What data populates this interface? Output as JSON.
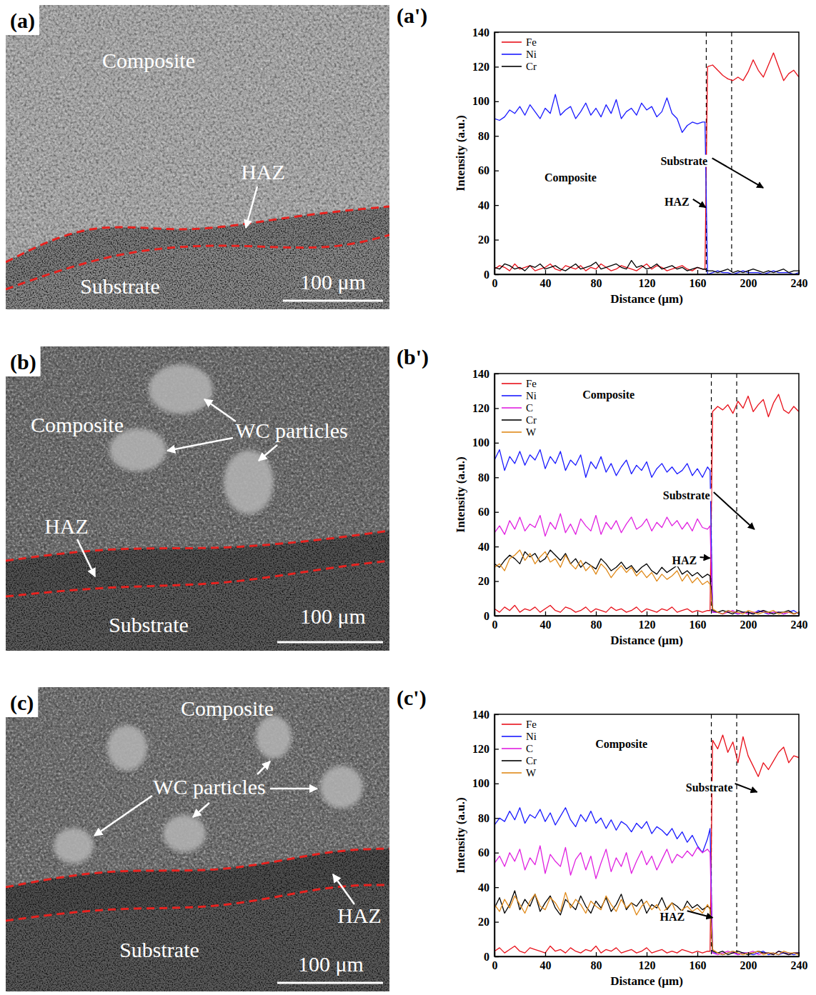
{
  "images": [
    {
      "label": "(a)",
      "texts": [
        "Composite",
        "HAZ",
        "Substrate"
      ],
      "scale_bar": "100 μm"
    },
    {
      "label": "(b)",
      "texts": [
        "Composite",
        "WC particles",
        "HAZ",
        "Substrate"
      ],
      "scale_bar": "100 μm"
    },
    {
      "label": "(c)",
      "texts": [
        "Composite",
        "WC particles",
        "HAZ",
        "Substrate"
      ],
      "scale_bar": "100 μm"
    }
  ],
  "chart_data": [
    {
      "type": "line",
      "title": "(a')",
      "x_label": "Distance (μm)",
      "y_label": "Intensity (a.u.)",
      "x": [
        0,
        4,
        8,
        12,
        16,
        20,
        24,
        28,
        32,
        36,
        40,
        44,
        48,
        52,
        56,
        60,
        64,
        68,
        72,
        76,
        80,
        84,
        88,
        92,
        96,
        100,
        104,
        108,
        112,
        116,
        120,
        124,
        128,
        132,
        136,
        140,
        144,
        148,
        152,
        156,
        160,
        164,
        166,
        168,
        172,
        176,
        180,
        184,
        188,
        192,
        196,
        200,
        204,
        208,
        212,
        216,
        220,
        224,
        228,
        232,
        236,
        240
      ],
      "series": [
        {
          "name": "Fe",
          "color": "#e8101a",
          "values": [
            3,
            5,
            4,
            2,
            6,
            3,
            4,
            5,
            2,
            3,
            4,
            6,
            3,
            2,
            5,
            4,
            3,
            5,
            2,
            4,
            3,
            6,
            4,
            2,
            3,
            5,
            4,
            3,
            2,
            4,
            6,
            3,
            5,
            4,
            2,
            3,
            4,
            5,
            3,
            2,
            4,
            3,
            3,
            120,
            121,
            118,
            115,
            113,
            112,
            114,
            112,
            117,
            124,
            118,
            114,
            121,
            128,
            120,
            112,
            116,
            118,
            114
          ]
        },
        {
          "name": "Ni",
          "color": "#1a1aff",
          "values": [
            90,
            89,
            91,
            95,
            93,
            97,
            92,
            98,
            94,
            90,
            96,
            93,
            104,
            92,
            95,
            97,
            90,
            94,
            99,
            92,
            96,
            91,
            98,
            93,
            101,
            90,
            94,
            96,
            92,
            99,
            95,
            97,
            91,
            94,
            102,
            93,
            90,
            82,
            86,
            88,
            87,
            88,
            88,
            0,
            1,
            2,
            1,
            1,
            0,
            1,
            2,
            1,
            1,
            1,
            0,
            1,
            2,
            1,
            1,
            1,
            0,
            1
          ]
        },
        {
          "name": "Cr",
          "color": "#000000",
          "values": [
            4,
            3,
            6,
            5,
            3,
            4,
            2,
            5,
            4,
            6,
            3,
            4,
            5,
            3,
            2,
            4,
            6,
            3,
            4,
            5,
            7,
            3,
            4,
            5,
            6,
            4,
            3,
            8,
            4,
            5,
            3,
            4,
            6,
            3,
            4,
            5,
            3,
            4,
            2,
            3,
            4,
            3,
            3,
            2,
            2,
            1,
            2,
            3,
            1,
            2,
            1,
            2,
            3,
            2,
            1,
            2,
            1,
            2,
            3,
            1,
            2,
            2
          ]
        }
      ],
      "xlim": [
        0,
        240
      ],
      "ylim": [
        0,
        140
      ],
      "xticks": [
        0,
        40,
        80,
        120,
        160,
        200,
        240
      ],
      "yticks": [
        0,
        20,
        40,
        60,
        80,
        100,
        120,
        140
      ],
      "legend": "upper left",
      "boundaries": [
        167,
        187
      ],
      "annotations": [
        "Composite",
        "Substrate",
        "HAZ"
      ]
    },
    {
      "type": "line",
      "title": "(b')",
      "x_label": "Distance (μm)",
      "y_label": "Intensity (a.u.)",
      "x": [
        0,
        4,
        8,
        12,
        16,
        20,
        24,
        28,
        32,
        36,
        40,
        44,
        48,
        52,
        56,
        60,
        64,
        68,
        72,
        76,
        80,
        84,
        88,
        92,
        96,
        100,
        104,
        108,
        112,
        116,
        120,
        124,
        128,
        132,
        136,
        140,
        144,
        148,
        152,
        156,
        160,
        164,
        168,
        170,
        172,
        176,
        180,
        184,
        188,
        192,
        196,
        200,
        204,
        208,
        212,
        216,
        220,
        224,
        228,
        232,
        236,
        240
      ],
      "series": [
        {
          "name": "Fe",
          "color": "#e8101a",
          "values": [
            4,
            2,
            5,
            3,
            6,
            2,
            4,
            3,
            5,
            2,
            4,
            6,
            3,
            2,
            5,
            4,
            2,
            3,
            5,
            2,
            4,
            3,
            2,
            5,
            3,
            4,
            2,
            3,
            5,
            2,
            4,
            3,
            2,
            4,
            3,
            5,
            2,
            3,
            4,
            2,
            3,
            2,
            3,
            3,
            118,
            121,
            119,
            122,
            117,
            124,
            120,
            127,
            118,
            122,
            125,
            115,
            123,
            128,
            119,
            117,
            121,
            118
          ]
        },
        {
          "name": "Ni",
          "color": "#1a1aff",
          "values": [
            90,
            96,
            84,
            92,
            88,
            95,
            87,
            93,
            90,
            96,
            85,
            92,
            88,
            95,
            84,
            90,
            87,
            93,
            80,
            89,
            85,
            92,
            83,
            88,
            81,
            86,
            90,
            82,
            87,
            84,
            89,
            80,
            85,
            88,
            83,
            86,
            82,
            84,
            88,
            81,
            85,
            80,
            86,
            84,
            2,
            2,
            1,
            3,
            2,
            1,
            2,
            2,
            1,
            3,
            2,
            1,
            2,
            2,
            1,
            2,
            3,
            1
          ]
        },
        {
          "name": "C",
          "color": "#e020e0",
          "values": [
            48,
            52,
            47,
            55,
            50,
            57,
            49,
            53,
            51,
            58,
            46,
            54,
            50,
            59,
            48,
            53,
            47,
            56,
            52,
            49,
            58,
            47,
            54,
            50,
            55,
            48,
            53,
            57,
            50,
            52,
            56,
            49,
            54,
            51,
            57,
            52,
            55,
            50,
            54,
            49,
            56,
            51,
            50,
            52,
            2,
            2,
            1,
            2,
            3,
            1,
            2,
            1,
            2,
            2,
            3,
            1,
            2,
            2,
            1,
            2,
            1,
            2
          ]
        },
        {
          "name": "Cr",
          "color": "#000000",
          "values": [
            30,
            28,
            32,
            35,
            33,
            30,
            37,
            34,
            36,
            31,
            33,
            38,
            35,
            32,
            36,
            30,
            33,
            28,
            31,
            29,
            27,
            33,
            30,
            26,
            28,
            31,
            27,
            29,
            25,
            28,
            30,
            26,
            24,
            28,
            25,
            27,
            29,
            24,
            26,
            23,
            25,
            22,
            24,
            23,
            3,
            2,
            3,
            2,
            1,
            3,
            2,
            2,
            1,
            2,
            3,
            2,
            1,
            2,
            2,
            3,
            1,
            2
          ]
        },
        {
          "name": "W",
          "color": "#e08a1a",
          "values": [
            28,
            30,
            26,
            33,
            35,
            38,
            32,
            36,
            30,
            34,
            37,
            31,
            33,
            28,
            35,
            30,
            27,
            32,
            26,
            29,
            24,
            30,
            27,
            22,
            26,
            29,
            25,
            28,
            23,
            26,
            22,
            25,
            20,
            24,
            21,
            23,
            26,
            20,
            24,
            19,
            22,
            18,
            20,
            18,
            4,
            2,
            1,
            3,
            2,
            2,
            1,
            3,
            2,
            1,
            2,
            2,
            3,
            1,
            2,
            2,
            1,
            2
          ]
        }
      ],
      "xlim": [
        0,
        240
      ],
      "ylim": [
        0,
        140
      ],
      "xticks": [
        0,
        40,
        80,
        120,
        160,
        200,
        240
      ],
      "yticks": [
        0,
        20,
        40,
        60,
        80,
        100,
        120,
        140
      ],
      "legend": "upper left",
      "boundaries": [
        171,
        191
      ],
      "annotations": [
        "Composite",
        "Substrate",
        "HAZ"
      ]
    },
    {
      "type": "line",
      "title": "(c')",
      "x_label": "Distance (μm)",
      "y_label": "Intensity (a.u.)",
      "x": [
        0,
        4,
        8,
        12,
        16,
        20,
        24,
        28,
        32,
        36,
        40,
        44,
        48,
        52,
        56,
        60,
        64,
        68,
        72,
        76,
        80,
        84,
        88,
        92,
        96,
        100,
        104,
        108,
        112,
        116,
        120,
        124,
        128,
        132,
        136,
        140,
        144,
        148,
        152,
        156,
        160,
        164,
        168,
        170,
        172,
        176,
        180,
        184,
        188,
        192,
        196,
        200,
        204,
        208,
        212,
        216,
        220,
        224,
        228,
        232,
        236,
        240
      ],
      "series": [
        {
          "name": "Fe",
          "color": "#e8101a",
          "values": [
            3,
            5,
            2,
            4,
            6,
            3,
            2,
            5,
            4,
            3,
            2,
            6,
            3,
            4,
            2,
            5,
            3,
            2,
            4,
            3,
            6,
            2,
            4,
            3,
            5,
            2,
            3,
            4,
            2,
            3,
            5,
            2,
            3,
            4,
            2,
            3,
            2,
            4,
            3,
            2,
            3,
            2,
            3,
            3,
            125,
            120,
            128,
            118,
            124,
            112,
            127,
            116,
            110,
            104,
            112,
            108,
            113,
            118,
            121,
            112,
            116,
            115
          ]
        },
        {
          "name": "Ni",
          "color": "#1a1aff",
          "values": [
            76,
            80,
            78,
            84,
            79,
            86,
            77,
            82,
            80,
            85,
            78,
            83,
            76,
            81,
            86,
            79,
            75,
            82,
            78,
            84,
            77,
            80,
            74,
            79,
            73,
            78,
            76,
            72,
            77,
            74,
            78,
            71,
            75,
            73,
            70,
            74,
            68,
            72,
            66,
            70,
            64,
            60,
            68,
            74,
            2,
            2,
            1,
            2,
            3,
            1,
            2,
            2,
            1,
            2,
            3,
            1,
            2,
            1,
            2,
            2,
            1,
            2
          ]
        },
        {
          "name": "C",
          "color": "#e020e0",
          "values": [
            54,
            58,
            52,
            60,
            55,
            62,
            50,
            57,
            53,
            64,
            48,
            59,
            55,
            52,
            63,
            47,
            56,
            60,
            50,
            58,
            45,
            54,
            62,
            49,
            57,
            52,
            60,
            48,
            55,
            61,
            53,
            58,
            50,
            56,
            62,
            54,
            59,
            57,
            61,
            58,
            63,
            60,
            62,
            60,
            2,
            1,
            2,
            3,
            2,
            1,
            2,
            2,
            3,
            1,
            2,
            2,
            1,
            3,
            2,
            1,
            2,
            2
          ]
        },
        {
          "name": "Cr",
          "color": "#000000",
          "values": [
            28,
            34,
            25,
            30,
            38,
            27,
            33,
            29,
            36,
            26,
            31,
            35,
            28,
            24,
            33,
            30,
            27,
            35,
            29,
            25,
            32,
            28,
            34,
            26,
            30,
            36,
            27,
            31,
            29,
            33,
            25,
            30,
            28,
            34,
            27,
            31,
            29,
            26,
            32,
            28,
            30,
            27,
            29,
            28,
            3,
            2,
            3,
            1,
            2,
            3,
            2,
            1,
            2,
            3,
            2,
            2,
            1,
            3,
            2,
            1,
            2,
            2
          ]
        },
        {
          "name": "W",
          "color": "#e08a1a",
          "values": [
            30,
            26,
            33,
            28,
            35,
            30,
            25,
            32,
            36,
            29,
            27,
            34,
            31,
            26,
            37,
            28,
            33,
            30,
            25,
            32,
            29,
            27,
            35,
            30,
            26,
            33,
            28,
            31,
            24,
            29,
            32,
            27,
            30,
            25,
            28,
            31,
            24,
            27,
            29,
            26,
            28,
            25,
            30,
            27,
            4,
            2,
            1,
            2,
            3,
            2,
            1,
            2,
            2,
            3,
            1,
            2,
            2,
            1,
            3,
            2,
            2,
            1
          ]
        }
      ],
      "xlim": [
        0,
        240
      ],
      "ylim": [
        0,
        140
      ],
      "xticks": [
        0,
        40,
        80,
        120,
        160,
        200,
        240
      ],
      "yticks": [
        0,
        20,
        40,
        60,
        80,
        100,
        120,
        140
      ],
      "legend": "upper left",
      "boundaries": [
        171,
        191
      ],
      "annotations": [
        "Composite",
        "Substrate",
        "HAZ"
      ]
    }
  ]
}
